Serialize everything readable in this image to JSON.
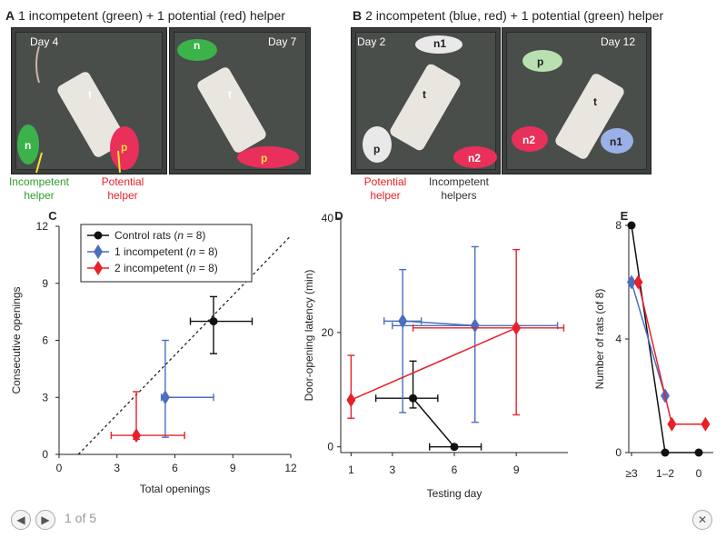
{
  "panel_a": {
    "letter": "A",
    "title": "1 incompetent (green) + 1 potential (red) helper",
    "photo1": {
      "day": "Day 4",
      "tags": [
        "t",
        "n",
        "p"
      ]
    },
    "photo2": {
      "day": "Day 7",
      "tags": [
        "n",
        "t",
        "p"
      ]
    },
    "captions": {
      "incompetent": "Incompetent helper",
      "potential": "Potential helper"
    },
    "colors": {
      "incompetent": "#2ca02c",
      "potential": "#e8202a"
    }
  },
  "panel_b": {
    "letter": "B",
    "title": "2 incompetent (blue, red) + 1 potential (green) helper",
    "photo1": {
      "day": "Day 2",
      "tags": [
        "n1",
        "t",
        "p",
        "n2"
      ]
    },
    "photo2": {
      "day": "Day 12",
      "tags": [
        "p",
        "t",
        "n2",
        "n1"
      ]
    },
    "captions": {
      "potential": "Potential helper",
      "incompetent": "Incompetent helpers"
    },
    "colors": {
      "potential": "#e8202a",
      "incompetent": "#333333"
    }
  },
  "chart_data": [
    {
      "panel": "C",
      "type": "scatter",
      "xlabel": "Total openings",
      "ylabel": "Consecutive openings",
      "xlim": [
        0,
        12
      ],
      "ylim": [
        0,
        12
      ],
      "xticks": [
        "0",
        "3",
        "6",
        "9",
        "12"
      ],
      "yticks": [
        "0",
        "3",
        "6",
        "9",
        "12"
      ],
      "reference_line": "dashed diagonal",
      "legend": [
        "Control rats (n = 8)",
        "1 incompetent (n = 8)",
        "2 incompetent (n = 8)"
      ],
      "legend_parts": [
        {
          "pre": "Control rats (",
          "n": "n",
          "post": " = 8)"
        },
        {
          "pre": "1 incompetent (",
          "n": "n",
          "post": " = 8)"
        },
        {
          "pre": "2 incompetent (",
          "n": "n",
          "post": " = 8)"
        }
      ],
      "series": [
        {
          "name": "Control rats",
          "color": "#111111",
          "marker": "circle",
          "x": 8,
          "y": 7,
          "xerr": [
            6.8,
            10
          ],
          "yerr": [
            5.3,
            8.3
          ]
        },
        {
          "name": "1 incompetent",
          "color": "#4a6fbf",
          "marker": "diamond",
          "x": 5.5,
          "y": 3,
          "xerr": [
            5.3,
            8
          ],
          "yerr": [
            0.9,
            6
          ]
        },
        {
          "name": "2 incompetent",
          "color": "#e8202a",
          "marker": "diamond",
          "x": 4,
          "y": 1,
          "xerr": [
            2.7,
            6.5
          ],
          "yerr": [
            0.8,
            3.3
          ]
        }
      ]
    },
    {
      "panel": "D",
      "type": "line",
      "xlabel": "Testing day",
      "ylabel": "Door-opening latency (min)",
      "xlim": [
        0.5,
        11.5
      ],
      "ylim": [
        -1,
        40
      ],
      "xticks": [
        "1",
        "3",
        "6",
        "9"
      ],
      "yticks": [
        "0",
        "20",
        "40"
      ],
      "series": [
        {
          "name": "Control rats",
          "color": "#111111",
          "marker": "circle",
          "points": [
            {
              "x": 4,
              "y": 8.5,
              "xerr": [
                2.2,
                5.2
              ],
              "yerr": [
                6.8,
                15
              ]
            },
            {
              "x": 6,
              "y": 0,
              "xerr": [
                4.8,
                7.3
              ],
              "yerr": [
                0,
                0
              ]
            }
          ]
        },
        {
          "name": "1 incompetent",
          "color": "#4a6fbf",
          "marker": "diamond",
          "points": [
            {
              "x": 3.5,
              "y": 22,
              "xerr": [
                2.6,
                4.4
              ],
              "yerr": [
                6,
                31
              ]
            },
            {
              "x": 7,
              "y": 21.2,
              "xerr": [
                3,
                11
              ],
              "yerr": [
                4.3,
                35
              ]
            }
          ]
        },
        {
          "name": "2 incompetent",
          "color": "#e8202a",
          "marker": "diamond",
          "points": [
            {
              "x": 1,
              "y": 8.2,
              "xerr": [
                1,
                1
              ],
              "yerr": [
                5,
                16
              ]
            },
            {
              "x": 9,
              "y": 20.8,
              "xerr": [
                4,
                11.3
              ],
              "yerr": [
                5.6,
                34.5
              ]
            }
          ]
        }
      ]
    },
    {
      "panel": "E",
      "type": "line",
      "xlabel": "",
      "ylabel": "Number of rats (of 8)",
      "categories": [
        "≥3",
        "1–2",
        "0"
      ],
      "ylim": [
        0,
        8
      ],
      "yticks": [
        "0",
        "4",
        "8"
      ],
      "series": [
        {
          "name": "Control rats",
          "color": "#111111",
          "marker": "circle",
          "x": [
            0,
            1,
            2
          ],
          "values": [
            8,
            0,
            0
          ]
        },
        {
          "name": "1 incompetent",
          "color": "#4a6fbf",
          "marker": "diamond",
          "x": [
            0,
            1
          ],
          "values": [
            6,
            2
          ]
        },
        {
          "name": "2 incompetent",
          "color": "#e8202a",
          "marker": "diamond",
          "x": [
            0.2,
            1.2,
            2.2
          ],
          "values": [
            6,
            1,
            1
          ]
        }
      ]
    }
  ],
  "pager": {
    "text": "1 of 5",
    "prev_icon": "◀",
    "next_icon": "▶",
    "close_icon": "✕"
  }
}
